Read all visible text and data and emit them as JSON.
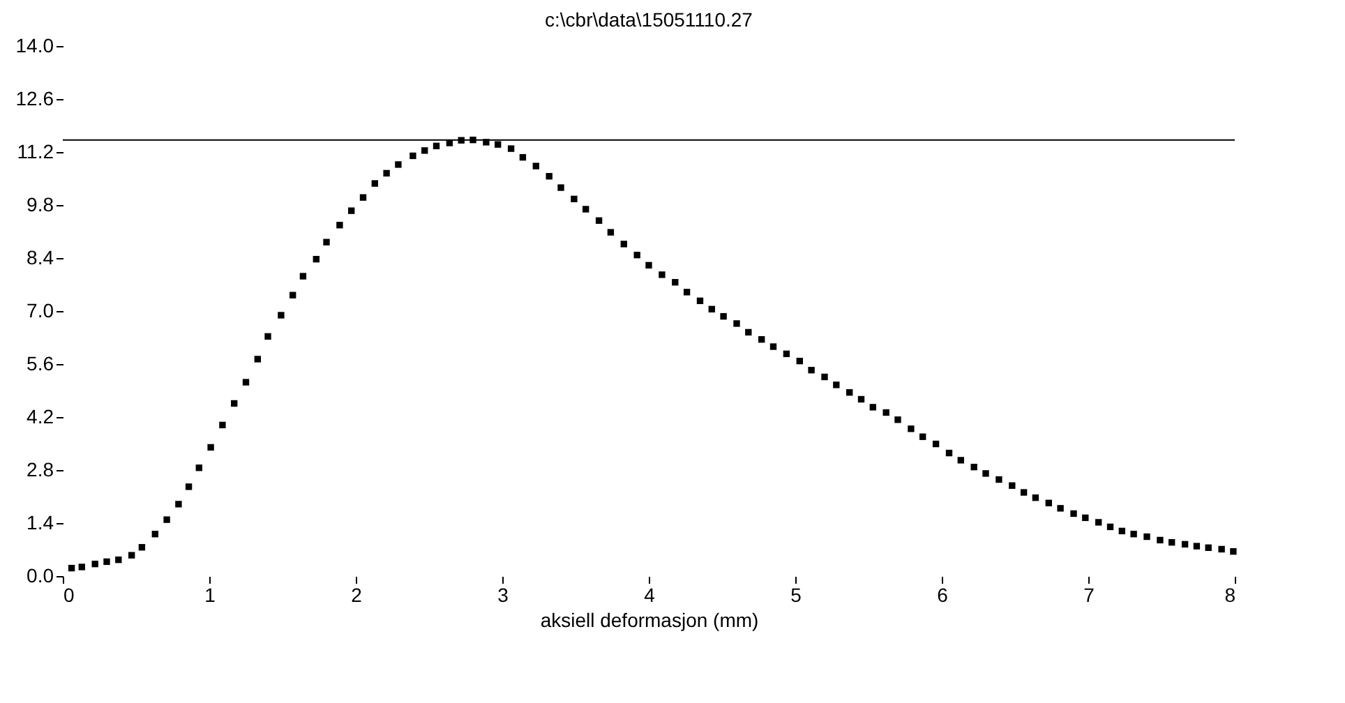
{
  "chart_data": {
    "type": "scatter",
    "title": "c:\\cbr\\data\\15051110.27",
    "xlabel": "aksiell deformasjon (mm)",
    "marker": "square",
    "grid": false,
    "xlim": [
      0,
      8
    ],
    "xticks": [
      0,
      1,
      2,
      3,
      4,
      5,
      6,
      7,
      8
    ],
    "ylim": [
      0,
      14
    ],
    "yticks": [
      {
        "value": 0,
        "label": "0.0"
      },
      {
        "value": 1.4,
        "label": "1.4"
      },
      {
        "value": 2.8,
        "label": "2.8"
      },
      {
        "value": 4.2,
        "label": "4.2"
      },
      {
        "value": 5.6,
        "label": "5.6"
      },
      {
        "value": 7,
        "label": "7.0"
      },
      {
        "value": 8.4,
        "label": "8.4"
      },
      {
        "value": 9.8,
        "label": "9.8"
      },
      {
        "value": 11.2,
        "label": "11.2"
      },
      {
        "value": 12.6,
        "label": "12.6"
      },
      {
        "value": 14,
        "label": "14.0"
      }
    ],
    "ref_lines": [
      {
        "axis": "y",
        "value": 11.52,
        "color": "#000000"
      }
    ],
    "series": [
      {
        "color": "#000000",
        "x": [
          0.06,
          0.13,
          0.22,
          0.3,
          0.38,
          0.47,
          0.54,
          0.63,
          0.71,
          0.79,
          0.86,
          0.93,
          1.01,
          1.09,
          1.17,
          1.25,
          1.33,
          1.4,
          1.49,
          1.57,
          1.64,
          1.73,
          1.8,
          1.89,
          1.97,
          2.05,
          2.13,
          2.21,
          2.29,
          2.39,
          2.47,
          2.55,
          2.64,
          2.72,
          2.8,
          2.89,
          2.97,
          3.06,
          3.14,
          3.23,
          3.32,
          3.4,
          3.49,
          3.57,
          3.66,
          3.74,
          3.83,
          3.92,
          4.0,
          4.09,
          4.18,
          4.26,
          4.35,
          4.43,
          4.51,
          4.6,
          4.68,
          4.77,
          4.85,
          4.94,
          5.03,
          5.11,
          5.2,
          5.28,
          5.37,
          5.45,
          5.53,
          5.62,
          5.7,
          5.79,
          5.87,
          5.96,
          6.05,
          6.13,
          6.22,
          6.3,
          6.39,
          6.48,
          6.56,
          6.64,
          6.73,
          6.81,
          6.9,
          6.98,
          7.07,
          7.15,
          7.23,
          7.31,
          7.4,
          7.49,
          7.57,
          7.66,
          7.74,
          7.82,
          7.91,
          7.99
        ],
        "values": [
          0.21,
          0.24,
          0.32,
          0.38,
          0.43,
          0.55,
          0.76,
          1.11,
          1.49,
          1.9,
          2.36,
          2.86,
          3.4,
          3.99,
          4.56,
          5.12,
          5.73,
          6.33,
          6.89,
          7.42,
          7.92,
          8.37,
          8.82,
          9.27,
          9.65,
          10.0,
          10.37,
          10.64,
          10.87,
          11.1,
          11.24,
          11.36,
          11.44,
          11.51,
          11.52,
          11.46,
          11.4,
          11.29,
          11.06,
          10.83,
          10.56,
          10.26,
          9.96,
          9.69,
          9.39,
          9.08,
          8.77,
          8.48,
          8.21,
          7.96,
          7.76,
          7.5,
          7.27,
          7.05,
          6.86,
          6.67,
          6.44,
          6.25,
          6.06,
          5.87,
          5.68,
          5.44,
          5.26,
          5.05,
          4.85,
          4.67,
          4.46,
          4.32,
          4.13,
          3.89,
          3.68,
          3.49,
          3.25,
          3.06,
          2.88,
          2.71,
          2.55,
          2.39,
          2.21,
          2.07,
          1.93,
          1.79,
          1.65,
          1.54,
          1.42,
          1.3,
          1.19,
          1.11,
          1.04,
          0.95,
          0.89,
          0.84,
          0.79,
          0.75,
          0.71,
          0.65
        ]
      }
    ]
  }
}
